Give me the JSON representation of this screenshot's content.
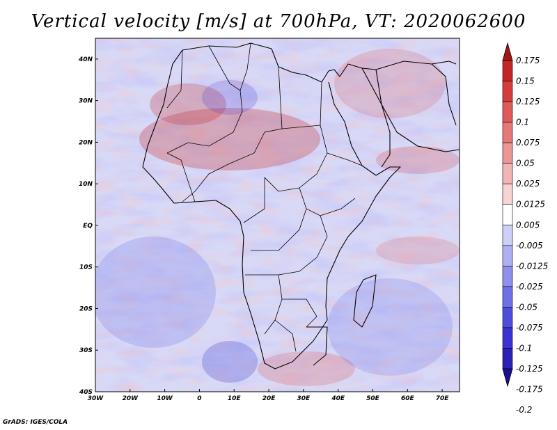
{
  "title": "Vertical velocity [m/s] at 700hPa, VT: 2020062600",
  "credit": "GrADS: IGES/COLA",
  "map": {
    "lon_range": [
      -30,
      75
    ],
    "lat_range": [
      -40,
      45
    ],
    "lon_ticks": [
      {
        "value": -30,
        "label": "30W"
      },
      {
        "value": -20,
        "label": "20W"
      },
      {
        "value": -10,
        "label": "10W"
      },
      {
        "value": 0,
        "label": "0"
      },
      {
        "value": 10,
        "label": "10E"
      },
      {
        "value": 20,
        "label": "20E"
      },
      {
        "value": 30,
        "label": "30E"
      },
      {
        "value": 40,
        "label": "40E"
      },
      {
        "value": 50,
        "label": "50E"
      },
      {
        "value": 60,
        "label": "60E"
      },
      {
        "value": 70,
        "label": "70E"
      }
    ],
    "lat_ticks": [
      {
        "value": 40,
        "label": "40N"
      },
      {
        "value": 30,
        "label": "30N"
      },
      {
        "value": 20,
        "label": "20N"
      },
      {
        "value": 10,
        "label": "10N"
      },
      {
        "value": 0,
        "label": "EQ"
      },
      {
        "value": -10,
        "label": "10S"
      },
      {
        "value": -20,
        "label": "20S"
      },
      {
        "value": -30,
        "label": "30S"
      },
      {
        "value": -40,
        "label": "40S"
      }
    ]
  },
  "colorbar": {
    "colors": [
      "#1c0f96",
      "#2b21b8",
      "#3c32d2",
      "#4d4fdc",
      "#6f72e6",
      "#8e90ec",
      "#aeb0f2",
      "#cfd0f8",
      "#ffffff",
      "#f8d3d3",
      "#f2b5b5",
      "#ec9696",
      "#e67878",
      "#e05a5a",
      "#d63c3c",
      "#c42626",
      "#a41616"
    ],
    "levels": [
      "-0.2",
      "-0.175",
      "-0.125",
      "-0.1",
      "-0.075",
      "-0.05",
      "-0.025",
      "-0.0125",
      "-0.005",
      "0.005",
      "0.0125",
      "0.025",
      "0.05",
      "0.075",
      "0.1",
      "0.125",
      "0.15",
      "0.175"
    ]
  }
}
